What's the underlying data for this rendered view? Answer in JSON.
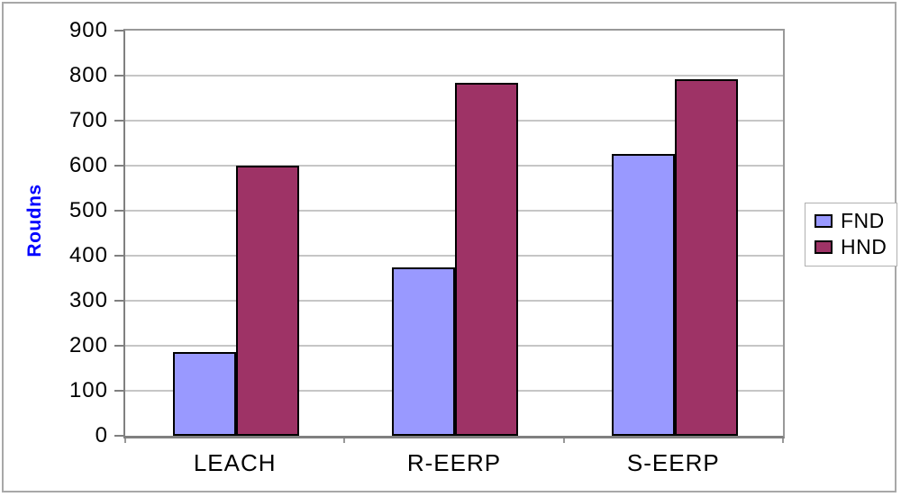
{
  "chart_data": {
    "type": "bar",
    "title": "",
    "categories": [
      "LEACH",
      "R-EERP",
      "S-EERP"
    ],
    "series": [
      {
        "name": "FND",
        "color": "#9999ff",
        "values": [
          187,
          374,
          627
        ]
      },
      {
        "name": "HND",
        "color": "#9e3366",
        "values": [
          600,
          785,
          793
        ]
      }
    ],
    "xlabel": "",
    "ylabel": "Roudns",
    "ylim": [
      0,
      900
    ],
    "ytick_step": 100,
    "yticks": [
      0,
      100,
      200,
      300,
      400,
      500,
      600,
      700,
      800,
      900
    ],
    "grid": true,
    "legend_position": "right-outside"
  },
  "style": {
    "ylabel_color": "#0000ff",
    "axis_color": "#808080",
    "plot_border_color": "#999999",
    "gridline_color": "#c6c6c6",
    "bar_border_color": "#000000",
    "legend_border_color": "#b0b0b0",
    "frame_border_color": "#a8a8a8",
    "text_color": "#000000",
    "background": "#ffffff"
  }
}
